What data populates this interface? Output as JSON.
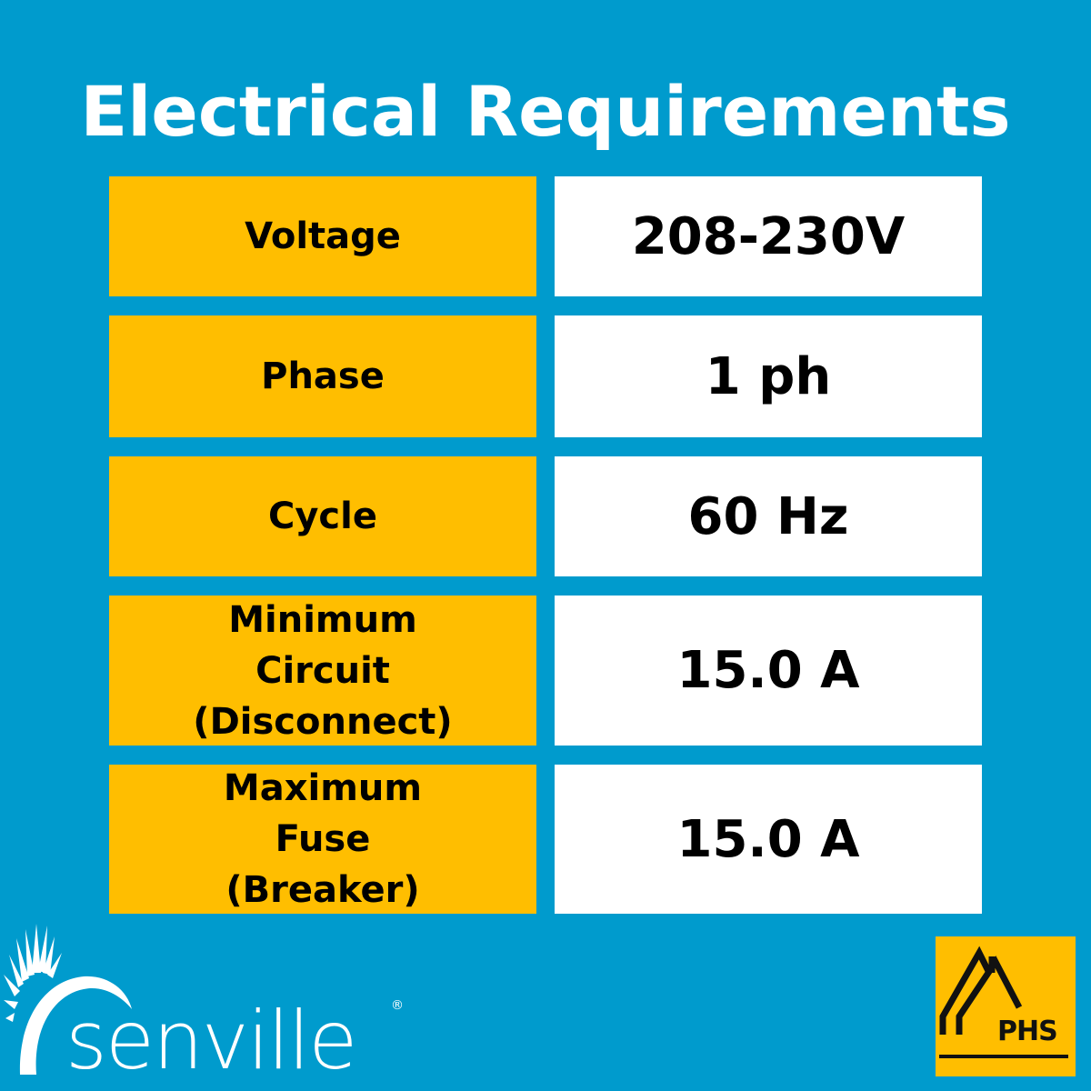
{
  "title": "Electrical Requirements",
  "rows": [
    {
      "label": "Voltage",
      "value": "208-230V"
    },
    {
      "label": "Phase",
      "value": "1 ph"
    },
    {
      "label": "Cycle",
      "value": "60 Hz"
    },
    {
      "label": "Minimum Circuit (Disconnect)",
      "value": "15.0 A"
    },
    {
      "label": "Maximum Fuse (Breaker)",
      "value": "15.0 A"
    }
  ],
  "logos": {
    "left": "senville",
    "right": "PHS"
  },
  "colors": {
    "background": "#009bcd",
    "label_bg": "#ffbe00",
    "value_bg": "#ffffff"
  }
}
